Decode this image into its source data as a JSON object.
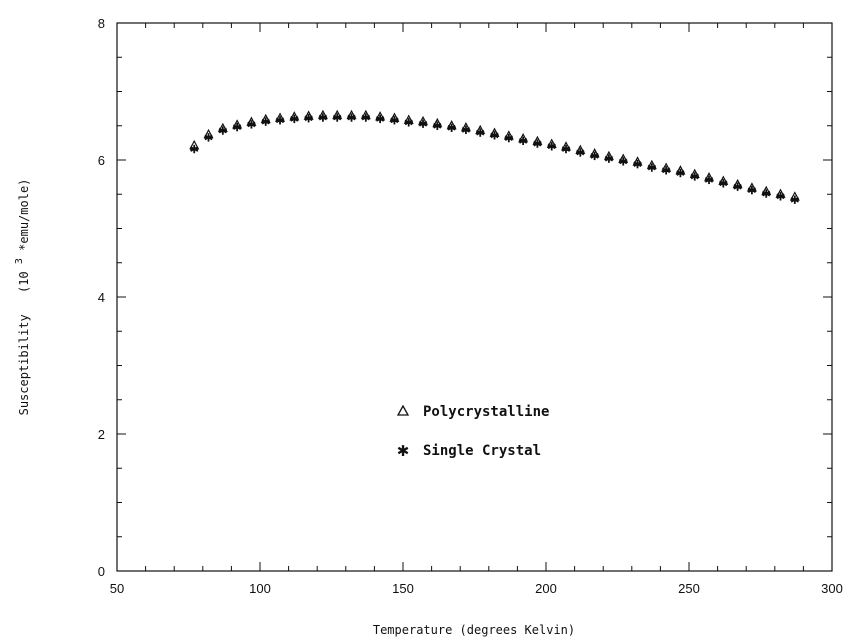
{
  "chart_data": {
    "type": "scatter",
    "title": "",
    "xlabel": "Temperature (degrees Kelvin)",
    "ylabel": "Susceptibility",
    "ylabel_unit": "(10",
    "ylabel_unit_exp": "3",
    "ylabel_unit_tail": "*emu/mole)",
    "xlim": [
      50,
      300
    ],
    "ylim": [
      0,
      8
    ],
    "xticks": [
      50,
      100,
      150,
      200,
      250,
      300
    ],
    "yticks": [
      0,
      2,
      4,
      6,
      8
    ],
    "grid": false,
    "legend_position": "center-left",
    "series": [
      {
        "name": "Polycrystalline",
        "marker": "triangle",
        "x": [
          77,
          82,
          87,
          92,
          97,
          102,
          107,
          112,
          117,
          122,
          127,
          132,
          137,
          142,
          147,
          152,
          157,
          162,
          167,
          172,
          177,
          182,
          187,
          192,
          197,
          202,
          207,
          212,
          217,
          222,
          227,
          232,
          237,
          242,
          247,
          252,
          257,
          262,
          267,
          272,
          277,
          282,
          287
        ],
        "y": [
          6.21,
          6.37,
          6.46,
          6.51,
          6.55,
          6.59,
          6.61,
          6.63,
          6.64,
          6.65,
          6.65,
          6.65,
          6.65,
          6.63,
          6.61,
          6.58,
          6.56,
          6.53,
          6.5,
          6.47,
          6.43,
          6.39,
          6.35,
          6.31,
          6.27,
          6.23,
          6.19,
          6.14,
          6.09,
          6.05,
          6.01,
          5.97,
          5.92,
          5.88,
          5.84,
          5.79,
          5.74,
          5.69,
          5.64,
          5.59,
          5.54,
          5.5,
          5.46
        ]
      },
      {
        "name": "Single Crystal",
        "marker": "star",
        "x": [
          77,
          82,
          87,
          92,
          97,
          102,
          107,
          112,
          117,
          122,
          127,
          132,
          137,
          142,
          147,
          152,
          157,
          162,
          167,
          172,
          177,
          182,
          187,
          192,
          197,
          202,
          207,
          212,
          217,
          222,
          227,
          232,
          237,
          242,
          247,
          252,
          257,
          262,
          267,
          272,
          277,
          282,
          287
        ],
        "y": [
          6.16,
          6.33,
          6.43,
          6.48,
          6.52,
          6.56,
          6.58,
          6.6,
          6.61,
          6.62,
          6.62,
          6.62,
          6.62,
          6.6,
          6.58,
          6.55,
          6.53,
          6.5,
          6.47,
          6.44,
          6.4,
          6.36,
          6.32,
          6.28,
          6.24,
          6.2,
          6.16,
          6.11,
          6.06,
          6.02,
          5.98,
          5.94,
          5.89,
          5.85,
          5.81,
          5.76,
          5.71,
          5.66,
          5.61,
          5.56,
          5.51,
          5.47,
          5.42
        ]
      }
    ]
  }
}
